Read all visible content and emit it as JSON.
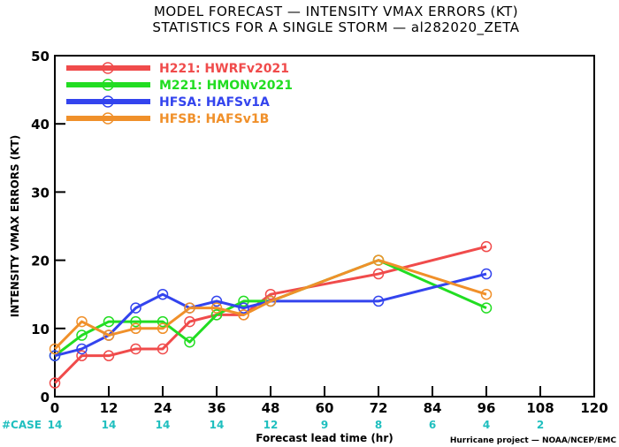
{
  "chart_data": {
    "type": "line",
    "title": "MODEL FORECAST — INTENSITY VMAX ERRORS (KT)",
    "subtitle": "STATISTICS FOR A SINGLE STORM — al282020_ZETA",
    "xlabel": "Forecast lead time (hr)",
    "ylabel": "INTENSITY VMAX ERRORS (KT)",
    "xlim": [
      0,
      120
    ],
    "ylim": [
      0,
      50
    ],
    "xticks": [
      0,
      12,
      24,
      36,
      48,
      60,
      72,
      84,
      96,
      108,
      120
    ],
    "yticks": [
      0,
      10,
      20,
      30,
      40,
      50
    ],
    "grid": false,
    "legend_position": "top-left",
    "series": [
      {
        "name": "H221: HWRFv2021",
        "color": "#f04b4b",
        "x": [
          0,
          6,
          12,
          18,
          24,
          30,
          36,
          42,
          48,
          72,
          96
        ],
        "y": [
          2,
          6,
          6,
          7,
          7,
          11,
          12,
          12,
          15,
          18,
          22
        ]
      },
      {
        "name": "M221: HMONv2021",
        "color": "#22dd22",
        "x": [
          0,
          6,
          12,
          18,
          24,
          30,
          36,
          42,
          48,
          72,
          96
        ],
        "y": [
          6,
          9,
          11,
          11,
          11,
          8,
          12,
          14,
          14,
          20,
          13
        ]
      },
      {
        "name": "HFSA: HAFSv1A",
        "color": "#3344ee",
        "x": [
          0,
          6,
          12,
          18,
          24,
          30,
          36,
          42,
          48,
          72,
          96
        ],
        "y": [
          6,
          7,
          9,
          13,
          15,
          13,
          14,
          13,
          14,
          14,
          18
        ]
      },
      {
        "name": "HFSB: HAFSv1B",
        "color": "#f0902a",
        "x": [
          0,
          6,
          12,
          18,
          24,
          30,
          36,
          42,
          48,
          72,
          96
        ],
        "y": [
          7,
          11,
          9,
          10,
          10,
          13,
          13,
          12,
          14,
          20,
          15
        ]
      }
    ],
    "case_label": "#CASE",
    "case_counts": [
      {
        "x": 0,
        "label": "14"
      },
      {
        "x": 12,
        "label": "14"
      },
      {
        "x": 24,
        "label": "14"
      },
      {
        "x": 36,
        "label": "14"
      },
      {
        "x": 48,
        "label": "12"
      },
      {
        "x": 60,
        "label": "9"
      },
      {
        "x": 72,
        "label": "8"
      },
      {
        "x": 84,
        "label": "6"
      },
      {
        "x": 96,
        "label": "4"
      },
      {
        "x": 108,
        "label": "2"
      }
    ],
    "credit": "Hurricane project — NOAA/NCEP/EMC"
  }
}
